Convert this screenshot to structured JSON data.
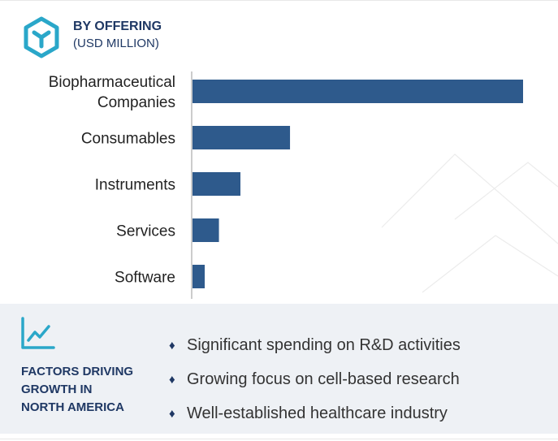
{
  "header": {
    "title": "BY OFFERING",
    "subtitle": "(USD MILLION)",
    "icon": "hexagon-icon",
    "accent_color": "#2aa7c9"
  },
  "chart_data": {
    "type": "bar",
    "orientation": "horizontal",
    "title": "BY OFFERING",
    "subtitle": "(USD MILLION)",
    "categories": [
      [
        "Biopharmaceutical",
        "Companies"
      ],
      [
        "Consumables"
      ],
      [
        "Instruments"
      ],
      [
        "Services"
      ],
      [
        "Software"
      ]
    ],
    "values": [
      100,
      29.5,
      14.5,
      8,
      3.7
    ],
    "xlim": [
      0,
      100
    ],
    "grid": false,
    "bar_color": "#2e5a8c"
  },
  "factors": {
    "icon": "trend-line-icon",
    "heading": [
      "FACTORS DRIVING",
      "GROWTH IN",
      "NORTH AMERICA"
    ],
    "bullet": "♦",
    "items": [
      "Significant spending on R&D activities",
      "Growing focus on cell-based research",
      "Well-established healthcare industry"
    ],
    "panel_color": "#eef1f5",
    "text_color": "#1f3864"
  }
}
